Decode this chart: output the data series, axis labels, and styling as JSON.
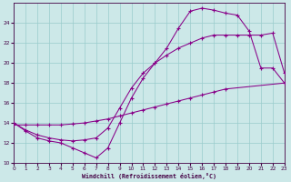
{
  "xlabel": "Windchill (Refroidissement éolien,°C)",
  "bg_color": "#cce8e8",
  "grid_color": "#99cccc",
  "line_color": "#880088",
  "xlim": [
    0,
    23
  ],
  "ylim": [
    10,
    26
  ],
  "xticks": [
    0,
    1,
    2,
    3,
    4,
    5,
    6,
    7,
    8,
    9,
    10,
    11,
    12,
    13,
    14,
    15,
    16,
    17,
    18,
    19,
    20,
    21,
    22,
    23
  ],
  "yticks": [
    10,
    12,
    14,
    16,
    18,
    20,
    22,
    24
  ],
  "series": [
    {
      "x": [
        0,
        1,
        2,
        3,
        4,
        5,
        6,
        7,
        8,
        9,
        10,
        11,
        12,
        13,
        14,
        15,
        16,
        17,
        18,
        23
      ],
      "y": [
        13.8,
        13.8,
        13.8,
        13.8,
        13.8,
        13.9,
        14.0,
        14.2,
        14.4,
        14.7,
        15.0,
        15.3,
        15.6,
        15.9,
        16.2,
        16.5,
        16.8,
        17.1,
        17.4,
        18.0
      ]
    },
    {
      "x": [
        0,
        1,
        2,
        3,
        4,
        5,
        6,
        7,
        8,
        9,
        10,
        11,
        12,
        13,
        14,
        15,
        16,
        17,
        18,
        19,
        20,
        21,
        22,
        23
      ],
      "y": [
        14.0,
        13.3,
        12.8,
        12.5,
        12.3,
        12.2,
        12.3,
        12.5,
        13.5,
        15.5,
        17.5,
        19.0,
        20.0,
        20.8,
        21.5,
        22.0,
        22.5,
        22.8,
        22.8,
        22.8,
        22.8,
        22.8,
        23.0,
        19.0
      ]
    },
    {
      "x": [
        0,
        1,
        2,
        3,
        4,
        5,
        6,
        7,
        8,
        9,
        10,
        11,
        12,
        13,
        14,
        15,
        16,
        17,
        18,
        19,
        20,
        21,
        22,
        23
      ],
      "y": [
        14.0,
        13.2,
        12.5,
        12.2,
        12.0,
        11.5,
        11.0,
        10.5,
        11.5,
        14.0,
        16.5,
        18.5,
        20.0,
        21.5,
        23.5,
        25.2,
        25.5,
        25.3,
        25.0,
        24.8,
        23.2,
        19.5,
        19.5,
        18.0
      ]
    }
  ]
}
